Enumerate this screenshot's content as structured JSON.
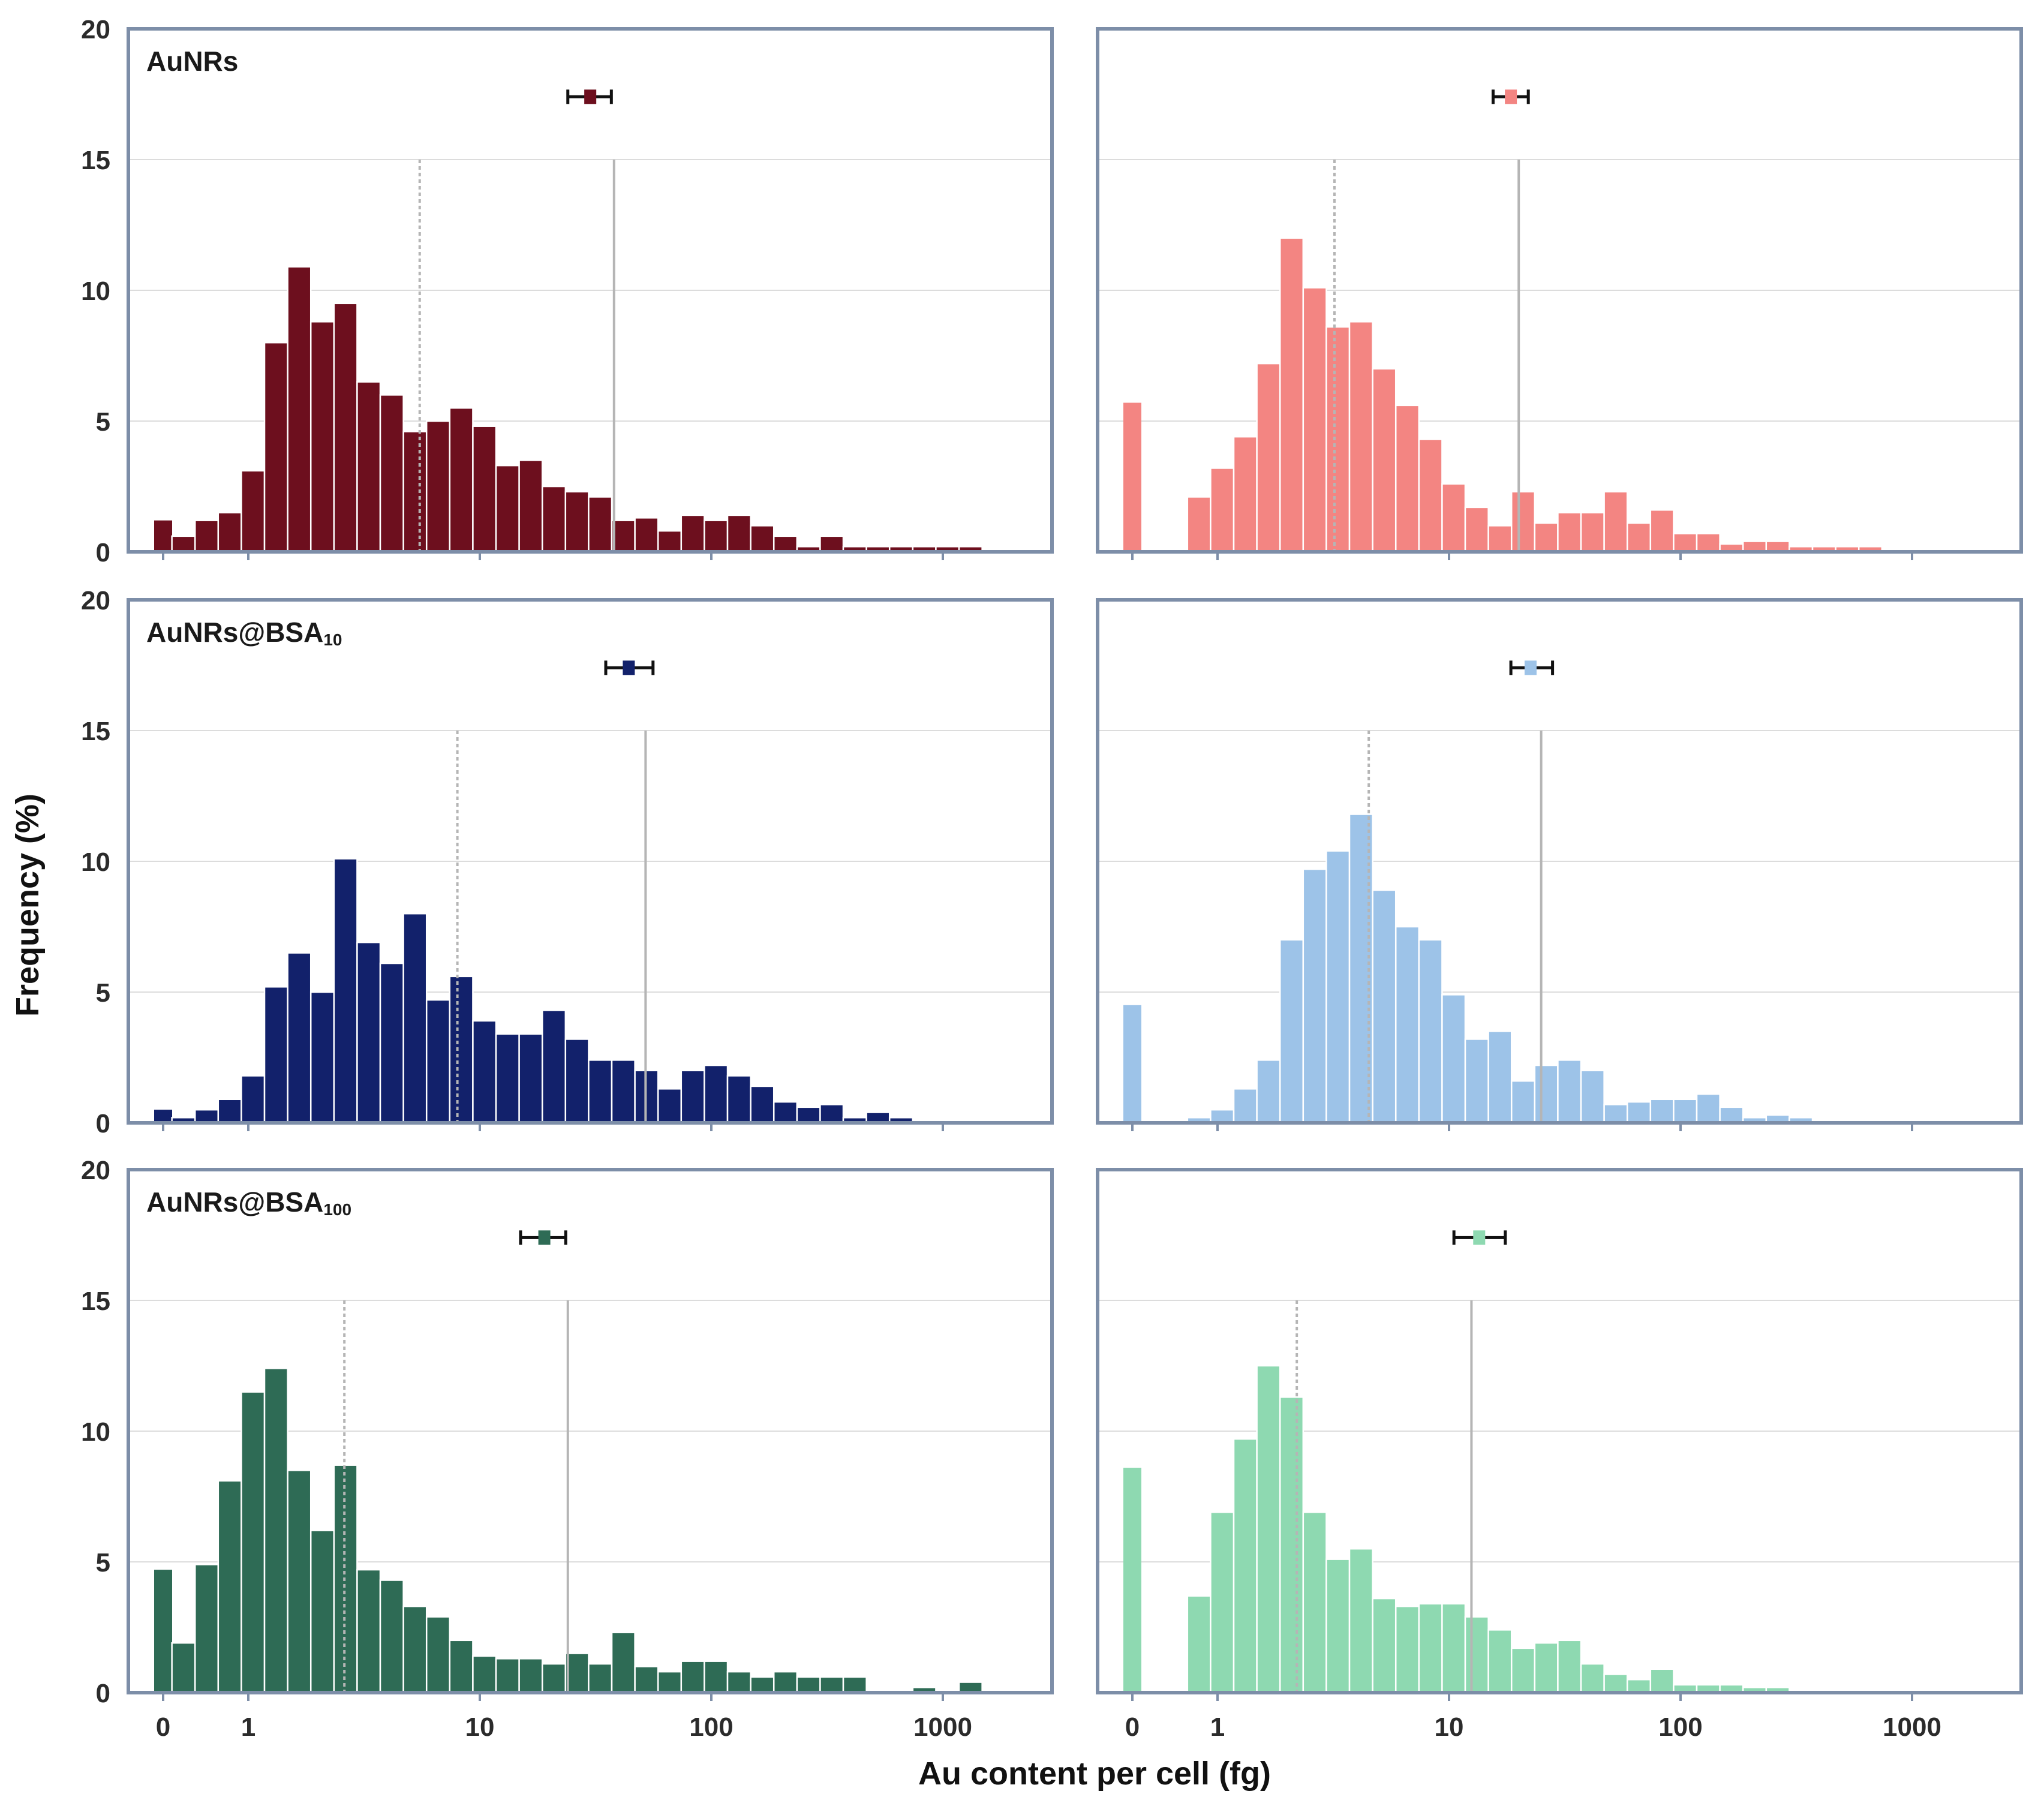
{
  "figure": {
    "ylabel": "Frequency (%)",
    "xlabel": "Au content per cell (fg)",
    "y_ticks": [
      "0",
      "5",
      "10",
      "15",
      "20"
    ],
    "x_ticks": [
      "0",
      "1",
      "10",
      "100",
      "1000"
    ]
  },
  "chart_data": [
    {
      "type": "bar",
      "row": 0,
      "col": 0,
      "title": "AuNRs",
      "title_sub": "",
      "color": "#6d0f1e",
      "xscale": "log",
      "xlabel": "Au content per cell (fg)",
      "ylabel": "Frequency (%)",
      "ylim": [
        0,
        20
      ],
      "zero_bin": 1.2,
      "first_bin_exp": -0.33,
      "bin_width_exp": 0.1,
      "values": [
        0.6,
        1.2,
        1.5,
        3.1,
        8.0,
        10.9,
        8.8,
        9.5,
        6.5,
        6.0,
        4.6,
        5.0,
        5.5,
        4.8,
        3.3,
        3.5,
        2.5,
        2.3,
        2.1,
        1.2,
        1.3,
        0.8,
        1.4,
        1.2,
        1.4,
        1.0,
        0.6,
        0.2,
        0.6,
        0.2,
        0.2,
        0.2,
        0.2,
        0.2,
        0.2
      ],
      "median_line": 5.5,
      "mean_line": 38,
      "mean_marker": 30,
      "mean_err": [
        24,
        37
      ]
    },
    {
      "type": "bar",
      "row": 0,
      "col": 1,
      "title": "",
      "title_sub": "",
      "color": "#f38582",
      "xscale": "log",
      "xlabel": "Au content per cell (fg)",
      "ylabel": "Frequency (%)",
      "ylim": [
        0,
        20
      ],
      "zero_bin": 5.7,
      "first_bin_exp": -0.13,
      "bin_width_exp": 0.1,
      "values": [
        2.1,
        3.2,
        4.4,
        7.2,
        12.0,
        10.1,
        8.6,
        8.8,
        7.0,
        5.6,
        4.3,
        2.6,
        1.7,
        1.0,
        2.3,
        1.1,
        1.5,
        1.5,
        2.3,
        1.1,
        1.6,
        0.7,
        0.7,
        0.3,
        0.4,
        0.4,
        0.2,
        0.2,
        0.2,
        0.2
      ],
      "median_line": 3.2,
      "mean_line": 20,
      "mean_marker": 18.5,
      "mean_err": [
        15.5,
        22
      ]
    },
    {
      "type": "bar",
      "row": 1,
      "col": 0,
      "title": "AuNRs@BSA",
      "title_sub": "10",
      "color": "#12216b",
      "xscale": "log",
      "xlabel": "Au content per cell (fg)",
      "ylabel": "Frequency (%)",
      "ylim": [
        0,
        20
      ],
      "zero_bin": 0.5,
      "first_bin_exp": -0.33,
      "bin_width_exp": 0.1,
      "values": [
        0.2,
        0.5,
        0.9,
        1.8,
        5.2,
        6.5,
        5.0,
        10.1,
        6.9,
        6.1,
        8.0,
        4.7,
        5.6,
        3.9,
        3.4,
        3.4,
        4.3,
        3.2,
        2.4,
        2.4,
        2.0,
        1.3,
        2.0,
        2.2,
        1.8,
        1.4,
        0.8,
        0.6,
        0.7,
        0.2,
        0.4,
        0.2
      ],
      "median_line": 8,
      "mean_line": 52,
      "mean_marker": 44,
      "mean_err": [
        35,
        56
      ]
    },
    {
      "type": "bar",
      "row": 1,
      "col": 1,
      "title": "",
      "title_sub": "",
      "color": "#9dc3e8",
      "xscale": "log",
      "xlabel": "Au content per cell (fg)",
      "ylabel": "Frequency (%)",
      "ylim": [
        0,
        20
      ],
      "zero_bin": 4.5,
      "first_bin_exp": -0.13,
      "bin_width_exp": 0.1,
      "values": [
        0.2,
        0.5,
        1.3,
        2.4,
        7.0,
        9.7,
        10.4,
        11.8,
        8.9,
        7.5,
        7.0,
        4.9,
        3.2,
        3.5,
        1.6,
        2.2,
        2.4,
        2.0,
        0.7,
        0.8,
        0.9,
        0.9,
        1.1,
        0.6,
        0.2,
        0.3,
        0.2
      ],
      "median_line": 4.5,
      "mean_line": 25,
      "mean_marker": 22.5,
      "mean_err": [
        18.5,
        28
      ]
    },
    {
      "type": "bar",
      "row": 2,
      "col": 0,
      "title": "AuNRs@BSA",
      "title_sub": "100",
      "color": "#2e6b55",
      "xscale": "log",
      "xlabel": "Au content per cell (fg)",
      "ylabel": "Frequency (%)",
      "ylim": [
        0,
        20
      ],
      "zero_bin": 4.7,
      "first_bin_exp": -0.33,
      "bin_width_exp": 0.1,
      "values": [
        1.9,
        4.9,
        8.1,
        11.5,
        12.4,
        8.5,
        6.2,
        8.7,
        4.7,
        4.3,
        3.3,
        2.9,
        2.0,
        1.4,
        1.3,
        1.3,
        1.1,
        1.5,
        1.1,
        2.3,
        1.0,
        0.8,
        1.2,
        1.2,
        0.8,
        0.6,
        0.8,
        0.6,
        0.6,
        0.6,
        0.0,
        0.0,
        0.2,
        0.0,
        0.4
      ],
      "median_line": 2.6,
      "mean_line": 24,
      "mean_marker": 19,
      "mean_err": [
        15,
        23.5
      ]
    },
    {
      "type": "bar",
      "row": 2,
      "col": 1,
      "title": "",
      "title_sub": "",
      "color": "#8ed9b1",
      "xscale": "log",
      "xlabel": "Au content per cell (fg)",
      "ylabel": "Frequency (%)",
      "ylim": [
        0,
        20
      ],
      "zero_bin": 8.6,
      "first_bin_exp": -0.13,
      "bin_width_exp": 0.1,
      "values": [
        3.7,
        6.9,
        9.7,
        12.5,
        11.3,
        6.9,
        5.1,
        5.5,
        3.6,
        3.3,
        3.4,
        3.4,
        2.9,
        2.4,
        1.7,
        1.9,
        2.0,
        1.1,
        0.7,
        0.5,
        0.9,
        0.3,
        0.3,
        0.3,
        0.2,
        0.2
      ],
      "median_line": 2.2,
      "mean_line": 12.5,
      "mean_marker": 13.5,
      "mean_err": [
        10.5,
        17.5
      ]
    }
  ]
}
